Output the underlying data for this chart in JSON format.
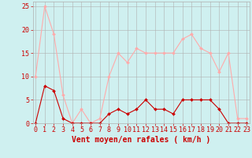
{
  "hours": [
    0,
    1,
    2,
    3,
    4,
    5,
    6,
    7,
    8,
    9,
    10,
    11,
    12,
    13,
    14,
    15,
    16,
    17,
    18,
    19,
    20,
    21,
    22,
    23
  ],
  "wind_avg": [
    0,
    8,
    7,
    1,
    0,
    0,
    0,
    0,
    2,
    3,
    2,
    3,
    5,
    3,
    3,
    2,
    5,
    5,
    5,
    5,
    3,
    0,
    0,
    0
  ],
  "wind_gust": [
    10,
    25,
    19,
    6,
    0,
    3,
    0,
    1,
    10,
    15,
    13,
    16,
    15,
    15,
    15,
    15,
    18,
    19,
    16,
    15,
    11,
    15,
    1,
    1
  ],
  "color_avg": "#cc0000",
  "color_gust": "#ffaaaa",
  "bg_color": "#cff0f0",
  "grid_color": "#b0b0b0",
  "xlabel": "Vent moyen/en rafales ( km/h )",
  "ylim": [
    0,
    26
  ],
  "yticks": [
    0,
    5,
    10,
    15,
    20,
    25
  ],
  "tick_fontsize": 6,
  "label_fontsize": 7
}
